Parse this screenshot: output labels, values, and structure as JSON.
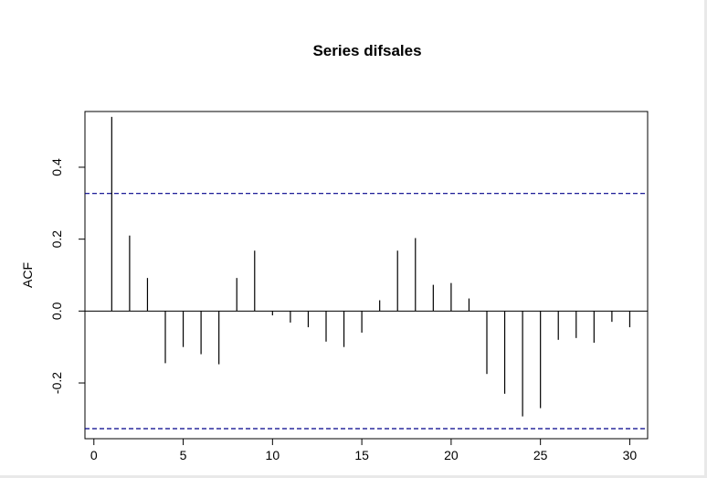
{
  "chart_data": {
    "type": "bar",
    "title": "Series difsales",
    "xlabel": "",
    "ylabel": "ACF",
    "xlim": [
      -0.5,
      31.0
    ],
    "ylim": [
      -0.355,
      0.555
    ],
    "x_ticks": [
      0,
      5,
      10,
      15,
      20,
      25,
      30
    ],
    "y_ticks": [
      -0.2,
      0.0,
      0.2,
      0.4
    ],
    "y_tick_labels": [
      "-0.2",
      "0.0",
      "0.2",
      "0.4"
    ],
    "confidence_band": 0.327,
    "confidence_color": "#00008b",
    "lags": [
      1,
      2,
      3,
      4,
      5,
      6,
      7,
      8,
      9,
      10,
      11,
      12,
      13,
      14,
      15,
      16,
      17,
      18,
      19,
      20,
      21,
      22,
      23,
      24,
      25,
      26,
      27,
      28,
      29,
      30
    ],
    "values": [
      0.54,
      0.21,
      0.092,
      -0.145,
      -0.1,
      -0.12,
      -0.148,
      0.092,
      0.168,
      -0.012,
      -0.032,
      -0.045,
      -0.085,
      -0.1,
      -0.06,
      0.03,
      0.168,
      0.203,
      0.073,
      0.078,
      0.035,
      -0.175,
      -0.23,
      -0.293,
      -0.27,
      -0.08,
      -0.075,
      -0.088,
      -0.03,
      -0.045
    ],
    "grid": false,
    "legend": "none"
  }
}
